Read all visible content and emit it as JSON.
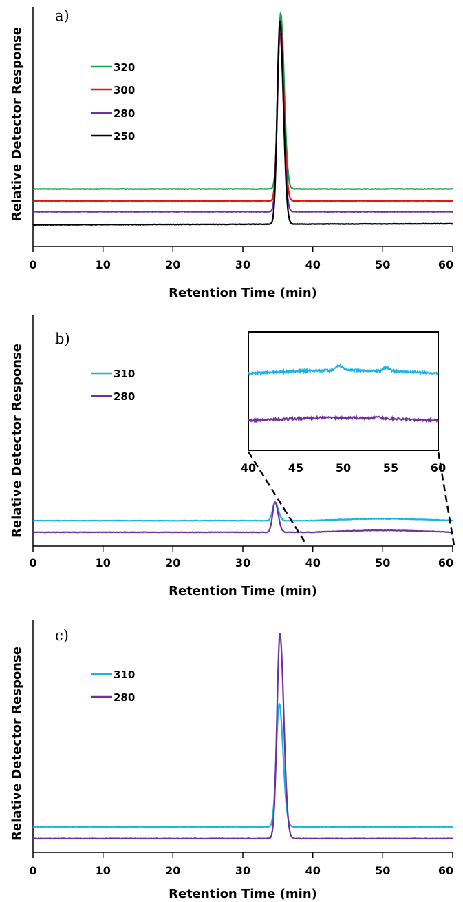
{
  "chart_data": [
    {
      "panel_label": "a)",
      "type": "line",
      "xlabel": "Retention Time  (min)",
      "ylabel": "Relative Detector Response",
      "xlim": [
        0,
        60
      ],
      "xticks": [
        "0",
        "10",
        "20",
        "30",
        "40",
        "50",
        "60"
      ],
      "grid": false,
      "legend_position": "top-left",
      "series": [
        {
          "name": "320",
          "color": "#16a34a",
          "baseline": 0.76,
          "peak_x": 35.4,
          "peak": 0.025,
          "tail": 0.76
        },
        {
          "name": "300",
          "color": "#e81010",
          "baseline": 0.81,
          "peak_x": 35.35,
          "peak": 0.06,
          "tail": 0.81
        },
        {
          "name": "280",
          "color": "#7030a0",
          "baseline": 0.855,
          "peak_x": 35.3,
          "peak": 0.11,
          "tail": 0.855
        },
        {
          "name": "250",
          "color": "#000000",
          "baseline": 0.91,
          "peak_x": 35.3,
          "peak": 0.06,
          "tail": 0.905
        }
      ]
    },
    {
      "panel_label": "b)",
      "type": "line",
      "xlabel": "Retention Time  (min)",
      "ylabel": "Relative Detector Response",
      "xlim": [
        0,
        60
      ],
      "xticks": [
        "0",
        "10",
        "20",
        "30",
        "40",
        "50",
        "60"
      ],
      "grid": false,
      "legend_position": "top-left",
      "series": [
        {
          "name": "310",
          "color": "#1fb0e6",
          "baseline": 0.89,
          "peak_x": 34.6,
          "peak": 0.81
        },
        {
          "name": "280",
          "color": "#7030a0",
          "baseline": 0.94,
          "peak_x": 34.6,
          "peak": 0.81
        }
      ],
      "inset": {
        "xlim": [
          40,
          60
        ],
        "xticks": [
          "40",
          "45",
          "50",
          "55",
          "60"
        ],
        "series": [
          {
            "name": "310",
            "color": "#1fb0e6",
            "baseline": 0.35
          },
          {
            "name": "280",
            "color": "#7030a0",
            "baseline": 0.75
          }
        ]
      }
    },
    {
      "panel_label": "c)",
      "type": "line",
      "xlabel": "Retention Time  (min)",
      "ylabel": "Relative Detector Response",
      "xlim": [
        0,
        60
      ],
      "xticks": [
        "0",
        "10",
        "20",
        "30",
        "40",
        "50",
        "60"
      ],
      "grid": false,
      "legend_position": "top-left",
      "series": [
        {
          "name": "310",
          "color": "#1fb0e6",
          "baseline": 0.89,
          "peak_x": 35.2,
          "peak": 0.36
        },
        {
          "name": "280",
          "color": "#7030a0",
          "baseline": 0.94,
          "peak_x": 35.3,
          "peak": 0.06
        }
      ]
    }
  ]
}
